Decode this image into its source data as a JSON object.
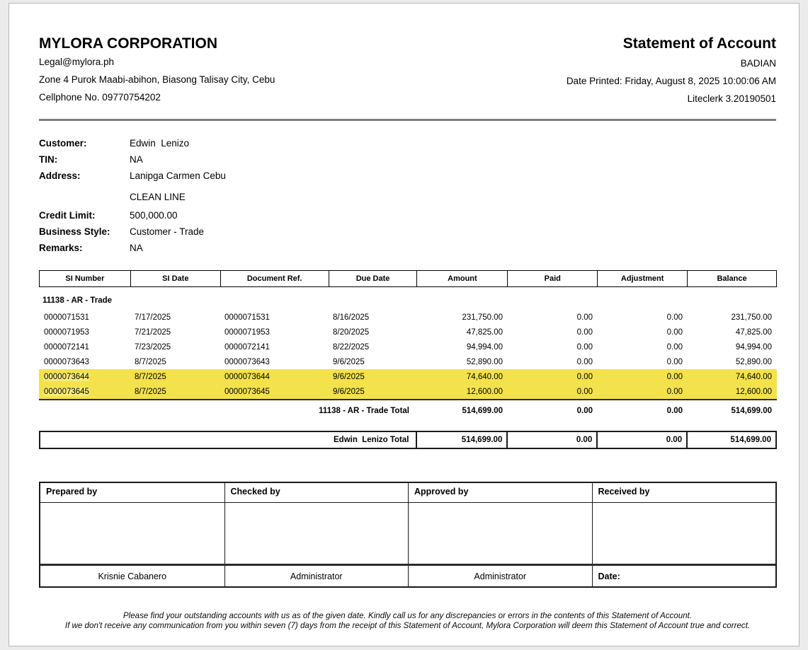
{
  "header": {
    "company_name": "MYLORA CORPORATION",
    "email": "Legal@mylora.ph",
    "address_line": "Zone 4 Purok Maabi-abihon, Biasong Talisay City, Cebu",
    "phone_line": "Cellphone No. 09770754202",
    "document_title": "Statement of Account",
    "branch": "BADIAN",
    "date_printed_line": "Date Printed: Friday, August 8, 2025 10:00:06 AM",
    "software_version": "Liteclerk 3.20190501"
  },
  "customer_info": {
    "rows": [
      {
        "label": "Customer:",
        "value": "Edwin  Lenizo"
      },
      {
        "label": "TIN:",
        "value": "NA"
      },
      {
        "label": "Address:",
        "value": "Lanipga Carmen Cebu"
      },
      {
        "label": "",
        "value": "CLEAN LINE"
      },
      {
        "label": "Credit Limit:",
        "value": "500,000.00"
      },
      {
        "label": "Business Style:",
        "value": "Customer - Trade"
      },
      {
        "label": "Remarks:",
        "value": "NA"
      }
    ]
  },
  "table": {
    "columns": [
      "SI Number",
      "SI Date",
      "Document Ref.",
      "Due Date",
      "Amount",
      "Paid",
      "Adjustment",
      "Balance"
    ],
    "group_label": "11138 - AR - Trade",
    "rows": [
      {
        "si_number": "0000071531",
        "si_date": "7/17/2025",
        "document_ref": "0000071531",
        "due_date": "8/16/2025",
        "amount": "231,750.00",
        "paid": "0.00",
        "adjustment": "0.00",
        "balance": "231,750.00",
        "highlighted": false
      },
      {
        "si_number": "0000071953",
        "si_date": "7/21/2025",
        "document_ref": "0000071953",
        "due_date": "8/20/2025",
        "amount": "47,825.00",
        "paid": "0.00",
        "adjustment": "0.00",
        "balance": "47,825.00",
        "highlighted": false
      },
      {
        "si_number": "0000072141",
        "si_date": "7/23/2025",
        "document_ref": "0000072141",
        "due_date": "8/22/2025",
        "amount": "94,994.00",
        "paid": "0.00",
        "adjustment": "0.00",
        "balance": "94,994.00",
        "highlighted": false
      },
      {
        "si_number": "0000073643",
        "si_date": "8/7/2025",
        "document_ref": "0000073643",
        "due_date": "9/6/2025",
        "amount": "52,890.00",
        "paid": "0.00",
        "adjustment": "0.00",
        "balance": "52,890.00",
        "highlighted": false
      },
      {
        "si_number": "0000073644",
        "si_date": "8/7/2025",
        "document_ref": "0000073644",
        "due_date": "9/6/2025",
        "amount": "74,640.00",
        "paid": "0.00",
        "adjustment": "0.00",
        "balance": "74,640.00",
        "highlighted": true
      },
      {
        "si_number": "0000073645",
        "si_date": "8/7/2025",
        "document_ref": "0000073645",
        "due_date": "9/6/2025",
        "amount": "12,600.00",
        "paid": "0.00",
        "adjustment": "0.00",
        "balance": "12,600.00",
        "highlighted": true
      }
    ],
    "group_total": {
      "label": "11138 - AR - Trade Total",
      "amount": "514,699.00",
      "paid": "0.00",
      "adjustment": "0.00",
      "balance": "514,699.00"
    },
    "customer_total": {
      "label": "Edwin  Lenizo Total",
      "amount": "514,699.00",
      "paid": "0.00",
      "adjustment": "0.00",
      "balance": "514,699.00"
    }
  },
  "signatures": {
    "headers": [
      "Prepared by",
      "Checked by",
      "Approved by",
      "Received by"
    ],
    "names": [
      "Krisnie Cabanero",
      "Administrator",
      "Administrator"
    ],
    "date_label": "Date:"
  },
  "footer": {
    "line1": "Please find your outstanding accounts with us as of the given date. Kindly call us for any discrepancies or errors in the contents of this Statement of Account.",
    "line2": "If we don't receive any communication from you within seven (7) days from the receipt of this Statement of Account, Mylora Corporation will deem this Statement of Account true and correct."
  },
  "colors": {
    "highlight_row": "#F3E24B",
    "rule_gray": "#818181",
    "page_background": "#ffffff",
    "canvas_background": "#ebebeb"
  }
}
